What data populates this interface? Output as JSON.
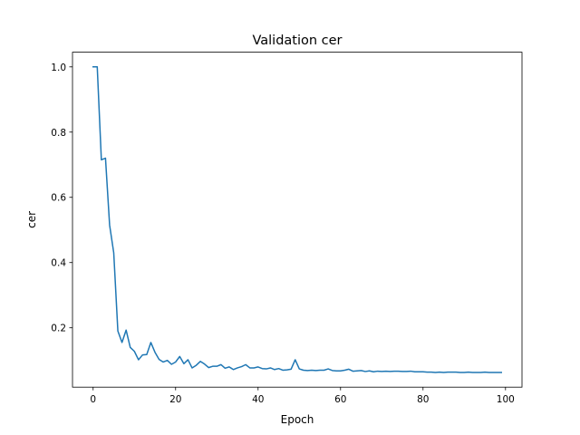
{
  "chart_data": {
    "type": "line",
    "title": "Validation cer",
    "xlabel": "Epoch",
    "ylabel": "cer",
    "xlim": [
      -5,
      104
    ],
    "ylim": [
      0.018,
      1.045
    ],
    "xticks": [
      0,
      20,
      40,
      60,
      80,
      100
    ],
    "xtick_labels": [
      "0",
      "20",
      "40",
      "60",
      "80",
      "100"
    ],
    "yticks": [
      0.2,
      0.4,
      0.6,
      0.8,
      1.0
    ],
    "ytick_labels": [
      "0.2",
      "0.4",
      "0.6",
      "0.8",
      "1.0"
    ],
    "grid": false,
    "legend": false,
    "series": [
      {
        "name": "cer",
        "color": "#1f77b4",
        "x": [
          0,
          1,
          2,
          3,
          4,
          5,
          6,
          7,
          8,
          9,
          10,
          11,
          12,
          13,
          14,
          15,
          16,
          17,
          18,
          19,
          20,
          21,
          22,
          23,
          24,
          25,
          26,
          27,
          28,
          29,
          30,
          31,
          32,
          33,
          34,
          35,
          36,
          37,
          38,
          39,
          40,
          41,
          42,
          43,
          44,
          45,
          46,
          47,
          48,
          49,
          50,
          51,
          52,
          53,
          54,
          55,
          56,
          57,
          58,
          59,
          60,
          61,
          62,
          63,
          64,
          65,
          66,
          67,
          68,
          69,
          70,
          71,
          72,
          73,
          74,
          75,
          76,
          77,
          78,
          79,
          80,
          81,
          82,
          83,
          84,
          85,
          86,
          87,
          88,
          89,
          90,
          91,
          92,
          93,
          94,
          95,
          96,
          97,
          98,
          99
        ],
        "values": [
          1.0,
          1.0,
          0.715,
          0.72,
          0.515,
          0.43,
          0.19,
          0.155,
          0.193,
          0.14,
          0.128,
          0.102,
          0.117,
          0.118,
          0.155,
          0.125,
          0.103,
          0.095,
          0.1,
          0.088,
          0.095,
          0.112,
          0.09,
          0.102,
          0.077,
          0.085,
          0.097,
          0.089,
          0.078,
          0.082,
          0.082,
          0.087,
          0.076,
          0.08,
          0.072,
          0.077,
          0.081,
          0.087,
          0.077,
          0.077,
          0.08,
          0.075,
          0.074,
          0.077,
          0.072,
          0.075,
          0.07,
          0.071,
          0.073,
          0.102,
          0.074,
          0.07,
          0.069,
          0.07,
          0.069,
          0.07,
          0.07,
          0.074,
          0.069,
          0.068,
          0.068,
          0.07,
          0.073,
          0.067,
          0.068,
          0.069,
          0.066,
          0.068,
          0.065,
          0.067,
          0.066,
          0.067,
          0.066,
          0.067,
          0.067,
          0.066,
          0.066,
          0.067,
          0.065,
          0.065,
          0.065,
          0.064,
          0.064,
          0.063,
          0.064,
          0.063,
          0.064,
          0.064,
          0.064,
          0.063,
          0.063,
          0.064,
          0.063,
          0.063,
          0.063,
          0.064,
          0.063,
          0.063,
          0.063,
          0.063
        ]
      }
    ]
  }
}
